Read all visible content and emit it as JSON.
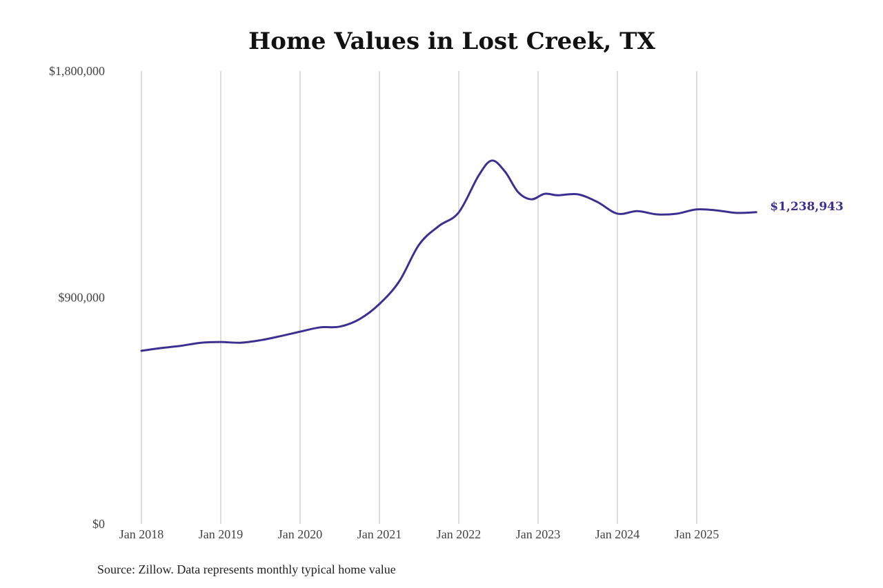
{
  "chart_data": {
    "type": "line",
    "title": "Home Values in Lost Creek, TX",
    "source": "Source: Zillow. Data represents monthly typical home value",
    "xlabel": "",
    "ylabel": "",
    "ylim": [
      0,
      1800000
    ],
    "yticks": [
      0,
      900000,
      1800000
    ],
    "ytick_labels": [
      "$0",
      "$900,000",
      "$1,800,000"
    ],
    "xticks": [
      "2018-01",
      "2019-01",
      "2020-01",
      "2021-01",
      "2022-01",
      "2023-01",
      "2024-01",
      "2025-01"
    ],
    "xtick_labels": [
      "Jan 2018",
      "Jan 2019",
      "Jan 2020",
      "Jan 2021",
      "Jan 2022",
      "Jan 2023",
      "Jan 2024",
      "Jan 2025"
    ],
    "grid": "vertical",
    "line_color": "#3b3091",
    "end_label": "$1,238,943",
    "series": [
      {
        "x": [
          "2018-01",
          "2018-04",
          "2018-07",
          "2018-10",
          "2019-01",
          "2019-04",
          "2019-07",
          "2019-10",
          "2020-01",
          "2020-04",
          "2020-07",
          "2020-10",
          "2021-01",
          "2021-04",
          "2021-07",
          "2021-10",
          "2022-01",
          "2022-04",
          "2022-06",
          "2022-08",
          "2022-10",
          "2022-12",
          "2023-02",
          "2023-04",
          "2023-07",
          "2023-10",
          "2024-01",
          "2024-04",
          "2024-07",
          "2024-10",
          "2025-01",
          "2025-04",
          "2025-07",
          "2025-10"
        ],
        "y": [
          688000,
          699000,
          708000,
          720000,
          723000,
          720000,
          730000,
          746000,
          764000,
          781000,
          784000,
          814000,
          874000,
          964000,
          1110000,
          1184000,
          1238000,
          1384000,
          1444000,
          1400000,
          1318000,
          1290000,
          1312000,
          1306000,
          1310000,
          1279000,
          1233000,
          1243000,
          1230000,
          1233000,
          1250000,
          1246000,
          1236000,
          1238943
        ]
      }
    ]
  }
}
